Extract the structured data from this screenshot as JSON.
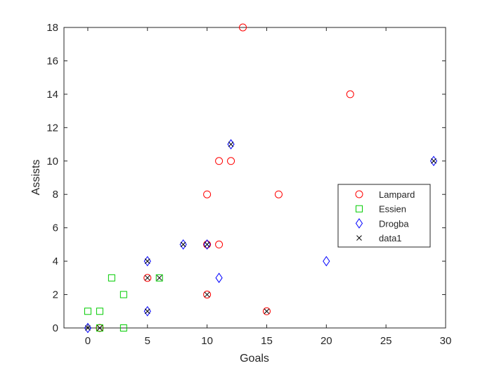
{
  "chart_data": {
    "type": "scatter",
    "title": "",
    "xlabel": "Goals",
    "ylabel": "Assists",
    "xlim": [
      -2,
      30
    ],
    "ylim": [
      0,
      18
    ],
    "xticks": [
      "0",
      "5",
      "10",
      "15",
      "20",
      "25",
      "30"
    ],
    "yticks": [
      "0",
      "2",
      "4",
      "6",
      "8",
      "10",
      "12",
      "14",
      "16",
      "18"
    ],
    "grid": false,
    "legend_position": "right-middle",
    "series": [
      {
        "name": "Lampard",
        "marker": "circle",
        "color": "#ff0000",
        "points": [
          [
            13,
            18
          ],
          [
            22,
            14
          ],
          [
            11,
            10
          ],
          [
            12,
            10
          ],
          [
            10,
            8
          ],
          [
            16,
            8
          ],
          [
            11,
            5
          ],
          [
            10,
            5
          ],
          [
            5,
            3
          ],
          [
            10,
            2
          ],
          [
            15,
            1
          ],
          [
            1,
            0
          ]
        ]
      },
      {
        "name": "Essien",
        "marker": "square",
        "color": "#00cc00",
        "points": [
          [
            0,
            1
          ],
          [
            1,
            1
          ],
          [
            2,
            3
          ],
          [
            3,
            2
          ],
          [
            3,
            0
          ],
          [
            6,
            3
          ],
          [
            1,
            0
          ]
        ]
      },
      {
        "name": "Drogba",
        "marker": "diamond",
        "color": "#0000ff",
        "points": [
          [
            29,
            10
          ],
          [
            12,
            11
          ],
          [
            8,
            5
          ],
          [
            10,
            5
          ],
          [
            5,
            4
          ],
          [
            11,
            3
          ],
          [
            20,
            4
          ],
          [
            5,
            1
          ],
          [
            0,
            0
          ]
        ]
      },
      {
        "name": "data1",
        "marker": "x",
        "color": "#000000",
        "points": [
          [
            12,
            11
          ],
          [
            10,
            5
          ],
          [
            8,
            5
          ],
          [
            5,
            4
          ],
          [
            5,
            3
          ],
          [
            6,
            3
          ],
          [
            10,
            2
          ],
          [
            15,
            1
          ],
          [
            5,
            1
          ],
          [
            1,
            0
          ],
          [
            0,
            0
          ],
          [
            29,
            10
          ]
        ]
      }
    ]
  }
}
